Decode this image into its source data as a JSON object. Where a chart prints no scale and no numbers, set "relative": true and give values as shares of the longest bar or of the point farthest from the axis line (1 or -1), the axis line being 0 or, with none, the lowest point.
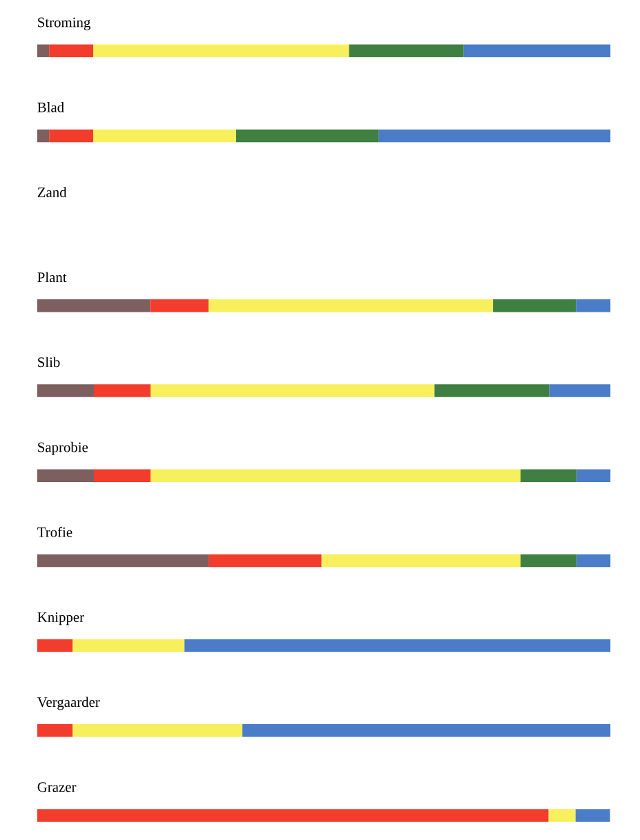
{
  "chart_data": {
    "type": "bar",
    "orientation": "horizontal",
    "stacked": true,
    "relative": true,
    "categories": [
      "Stroming",
      "Blad",
      "Zand",
      "Plant",
      "Slib",
      "Saprobie",
      "Trofie",
      "Knipper",
      "Vergaarder",
      "Grazer"
    ],
    "series": [
      {
        "color": "#7d5f5f",
        "values": [
          0.021,
          0.021,
          null,
          0.197,
          0.099,
          0.099,
          0.299,
          null,
          null,
          null
        ]
      },
      {
        "color": "#f23c2c",
        "values": [
          0.077,
          0.077,
          null,
          0.102,
          0.099,
          0.099,
          0.197,
          0.062,
          0.062,
          0.892
        ]
      },
      {
        "color": "#f7f05c",
        "values": [
          0.446,
          0.249,
          null,
          0.496,
          0.495,
          0.645,
          0.347,
          0.195,
          0.296,
          0.047
        ]
      },
      {
        "color": "#3f7f41",
        "values": [
          0.2,
          0.249,
          null,
          0.145,
          0.2,
          0.098,
          0.098,
          null,
          null,
          null
        ]
      },
      {
        "color": "#4a7cc8",
        "values": [
          0.256,
          0.404,
          null,
          0.06,
          0.107,
          0.059,
          0.059,
          0.743,
          0.642,
          0.06
        ]
      }
    ]
  }
}
